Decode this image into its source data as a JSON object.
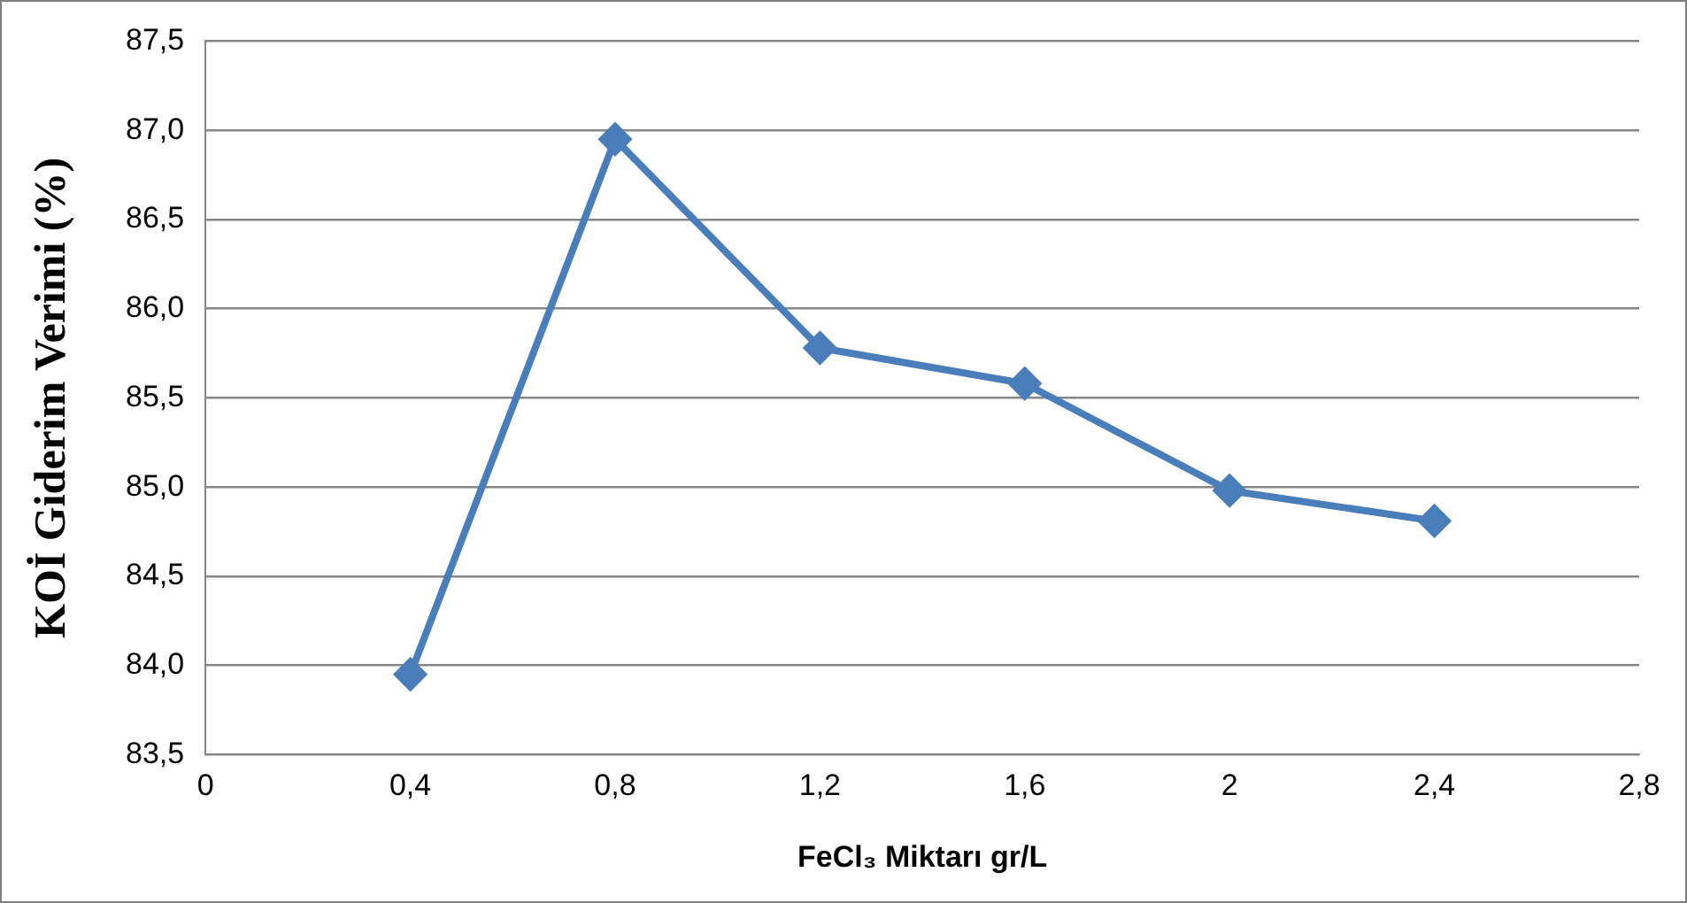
{
  "chart_data": {
    "type": "line",
    "xlabel": "FeCl₃ Miktarı gr/L",
    "ylabel": "KOİ Giderim Verimi (%)",
    "x": [
      0.4,
      0.8,
      1.2,
      1.6,
      2,
      2.4
    ],
    "values": [
      83.95,
      86.95,
      85.78,
      85.58,
      84.98,
      84.81
    ],
    "color": "#4a7ebb",
    "xlim": [
      0,
      2.8
    ],
    "xticks": [
      0,
      {
        "value": 0.4,
        "label": "0,4"
      },
      {
        "value": 0.8,
        "label": "0,8"
      },
      {
        "value": 1.2,
        "label": "1,2"
      },
      {
        "value": 1.6,
        "label": "1,6"
      },
      2,
      {
        "value": 2.4,
        "label": "2,4"
      },
      {
        "value": 2.8,
        "label": "2,8"
      }
    ],
    "ylim": [
      83.5,
      87.5
    ],
    "yticks": [
      {
        "value": 83.5,
        "label": "83,5"
      },
      {
        "value": 84,
        "label": "84,0"
      },
      {
        "value": 84.5,
        "label": "84,5"
      },
      {
        "value": 85,
        "label": "85,0"
      },
      {
        "value": 85.5,
        "label": "85,5"
      },
      {
        "value": 86,
        "label": "86,0"
      },
      {
        "value": 86.5,
        "label": "86,5"
      },
      {
        "value": 87,
        "label": "87,0"
      },
      {
        "value": 87.5,
        "label": "87,5"
      }
    ],
    "grid": "y",
    "legend": false,
    "marker": "diamond"
  }
}
